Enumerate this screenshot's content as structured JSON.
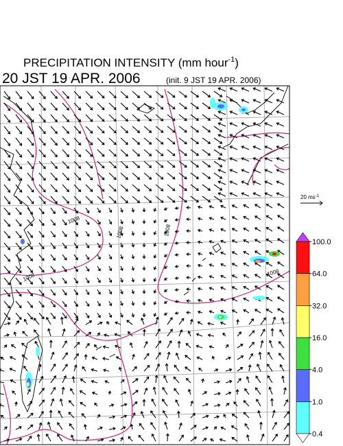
{
  "header": {
    "title_main": "PRECIPITATION INTENSITY (mm hour",
    "title_sup": "-1",
    "title_end": ")",
    "valid_time": "20 JST 19 APR. 2006",
    "init_time": "(init. 9 JST 19 APR. 2006)"
  },
  "wind_scale": {
    "label": "20 ms",
    "sup": "-1"
  },
  "isobars": {
    "labels": [
      "1008",
      "1008",
      "1008",
      "1008",
      "1008"
    ]
  },
  "colorbar": {
    "ticks": [
      {
        "value": 0.4,
        "label": "0.4"
      },
      {
        "value": 1,
        "label": "1.0"
      },
      {
        "value": 4,
        "label": "4.0"
      },
      {
        "value": 16,
        "label": "16.0"
      },
      {
        "value": 32,
        "label": "32.0"
      },
      {
        "value": 64,
        "label": "64.0"
      },
      {
        "value": 100,
        "label": "100.0"
      }
    ],
    "colors": [
      "#60ffff",
      "#5a6cff",
      "#3ee03e",
      "#ffff66",
      "#ffa040",
      "#ff1010"
    ],
    "under_color": "#ffffff",
    "over_color": "#c040ff"
  }
}
